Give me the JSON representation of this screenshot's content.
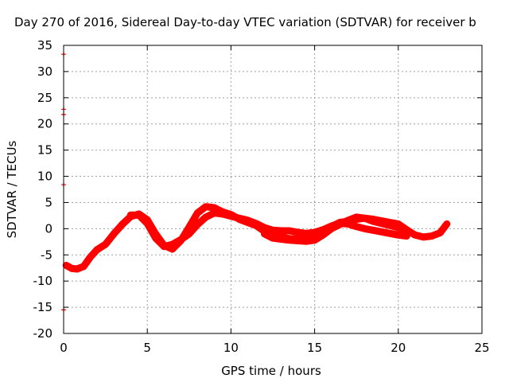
{
  "chart_data": {
    "type": "line",
    "title": "Day 270 of 2016, Sidereal Day-to-day VTEC variation (SDTVAR) for receiver b",
    "xlabel": "GPS time / hours",
    "ylabel": "SDTVAR / TECUs",
    "xlim": [
      0,
      25
    ],
    "ylim": [
      -20,
      35
    ],
    "xticks": [
      0,
      5,
      10,
      15,
      20,
      25
    ],
    "yticks": [
      -20,
      -15,
      -10,
      -5,
      0,
      5,
      10,
      15,
      20,
      25,
      30,
      35
    ],
    "grid": true,
    "legend": "none",
    "color": "#ff0000",
    "series": [
      {
        "points": [
          [
            0.15,
            -7.0
          ],
          [
            0.5,
            -7.6
          ],
          [
            0.8,
            -7.7
          ],
          [
            1.2,
            -7.2
          ],
          [
            1.6,
            -5.4
          ],
          [
            2.0,
            -4.0
          ],
          [
            2.5,
            -3.0
          ],
          [
            3.0,
            -1.0
          ],
          [
            3.5,
            0.8
          ],
          [
            4.0,
            2.3
          ],
          [
            4.5,
            2.8
          ],
          [
            5.0,
            1.7
          ],
          [
            5.5,
            -1.0
          ],
          [
            6.0,
            -3.2
          ],
          [
            6.5,
            -3.9
          ],
          [
            7.0,
            -2.3
          ],
          [
            7.5,
            0.3
          ],
          [
            8.0,
            3.0
          ],
          [
            8.5,
            4.2
          ],
          [
            9.0,
            4.0
          ],
          [
            9.5,
            3.2
          ],
          [
            10.0,
            2.7
          ],
          [
            10.5,
            1.8
          ],
          [
            11.0,
            1.2
          ],
          [
            11.5,
            0.6
          ],
          [
            12.0,
            -0.5
          ],
          [
            12.5,
            -1.0
          ],
          [
            13.0,
            -1.6
          ],
          [
            13.5,
            -1.9
          ],
          [
            14.0,
            -2.0
          ],
          [
            14.5,
            -1.8
          ],
          [
            15.0,
            -1.6
          ],
          [
            15.5,
            -0.6
          ],
          [
            16.0,
            0.4
          ],
          [
            16.5,
            1.2
          ],
          [
            17.0,
            1.4
          ],
          [
            17.5,
            1.8
          ],
          [
            18.0,
            2.0
          ],
          [
            18.5,
            1.8
          ],
          [
            19.0,
            1.5
          ],
          [
            19.5,
            1.2
          ],
          [
            20.0,
            0.9
          ],
          [
            20.5,
            -0.2
          ],
          [
            21.0,
            -1.2
          ],
          [
            21.5,
            -1.6
          ],
          [
            22.0,
            -1.4
          ],
          [
            22.5,
            -0.8
          ],
          [
            22.9,
            0.9
          ]
        ]
      },
      {
        "points": [
          [
            4.0,
            2.6
          ],
          [
            4.5,
            2.6
          ],
          [
            5.0,
            1.0
          ],
          [
            5.5,
            -1.8
          ],
          [
            6.0,
            -3.4
          ],
          [
            6.5,
            -3.0
          ],
          [
            7.0,
            -2.1
          ],
          [
            7.5,
            -1.0
          ],
          [
            8.0,
            0.8
          ],
          [
            8.5,
            2.2
          ],
          [
            9.0,
            3.0
          ],
          [
            9.5,
            2.8
          ],
          [
            10.0,
            2.4
          ],
          [
            10.5,
            2.0
          ],
          [
            11.0,
            1.6
          ],
          [
            11.5,
            1.0
          ],
          [
            12.0,
            0.2
          ],
          [
            12.5,
            -0.3
          ],
          [
            13.0,
            -0.4
          ],
          [
            13.5,
            -0.4
          ],
          [
            14.0,
            -0.7
          ],
          [
            14.5,
            -0.9
          ],
          [
            15.0,
            -0.7
          ],
          [
            15.5,
            -0.2
          ],
          [
            16.0,
            0.5
          ],
          [
            16.5,
            1.0
          ],
          [
            17.0,
            0.9
          ],
          [
            17.5,
            0.4
          ],
          [
            18.0,
            0.0
          ],
          [
            18.5,
            -0.3
          ],
          [
            19.0,
            -0.6
          ],
          [
            19.5,
            -0.9
          ],
          [
            20.0,
            -1.2
          ],
          [
            20.5,
            -1.4
          ]
        ]
      },
      {
        "points": [
          [
            12.0,
            -1.0
          ],
          [
            12.5,
            -1.8
          ],
          [
            13.0,
            -2.0
          ],
          [
            13.5,
            -2.2
          ],
          [
            14.0,
            -2.3
          ],
          [
            14.5,
            -2.4
          ],
          [
            15.0,
            -2.2
          ],
          [
            15.5,
            -1.2
          ],
          [
            16.0,
            0.0
          ],
          [
            16.5,
            0.8
          ],
          [
            17.0,
            1.6
          ],
          [
            17.5,
            2.2
          ],
          [
            18.0,
            2.0
          ],
          [
            18.5,
            1.4
          ],
          [
            19.0,
            1.0
          ],
          [
            19.5,
            0.6
          ],
          [
            20.0,
            0.2
          ],
          [
            20.5,
            -0.6
          ]
        ]
      }
    ],
    "outliers": [
      [
        0.05,
        33.3
      ],
      [
        0.05,
        22.8
      ],
      [
        0.05,
        21.8
      ],
      [
        0.05,
        8.4
      ],
      [
        0.05,
        -15.5
      ]
    ]
  }
}
